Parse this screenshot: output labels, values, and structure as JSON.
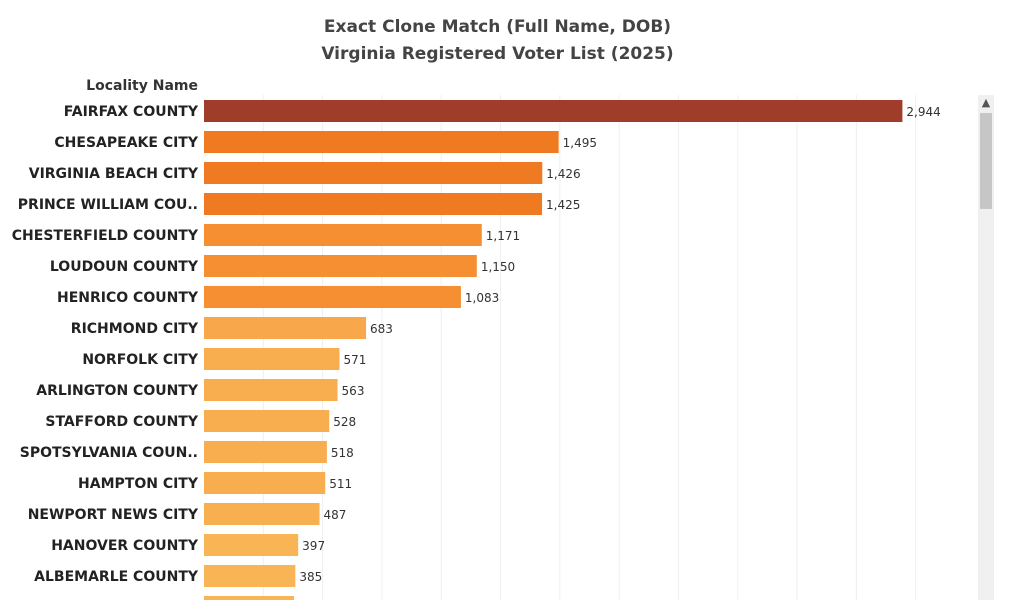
{
  "title": {
    "line1": "Exact Clone Match (Full Name, DOB)",
    "line2": "Virginia Registered Voter List (2025)"
  },
  "chart_data": {
    "type": "bar",
    "orientation": "horizontal",
    "ylabel": "Locality Name",
    "categories": [
      "FAIRFAX COUNTY",
      "CHESAPEAKE CITY",
      "VIRGINIA BEACH CITY",
      "PRINCE WILLIAM COU..",
      "CHESTERFIELD COUNTY",
      "LOUDOUN COUNTY",
      "HENRICO COUNTY",
      "RICHMOND CITY",
      "NORFOLK CITY",
      "ARLINGTON COUNTY",
      "STAFFORD COUNTY",
      "SPOTSYLVANIA COUN..",
      "HAMPTON CITY",
      "NEWPORT NEWS CITY",
      "HANOVER COUNTY",
      "ALBEMARLE COUNTY"
    ],
    "values": [
      2944,
      1495,
      1426,
      1425,
      1171,
      1150,
      1083,
      683,
      571,
      563,
      528,
      518,
      511,
      487,
      397,
      385
    ],
    "value_labels": [
      "2,944",
      "1,495",
      "1,426",
      "1,425",
      "1,171",
      "1,150",
      "1,083",
      "683",
      "571",
      "563",
      "528",
      "518",
      "511",
      "487",
      "397",
      "385"
    ],
    "colors": [
      "#a03c2a",
      "#f07a22",
      "#f07a22",
      "#f07a22",
      "#f58f32",
      "#f58f32",
      "#f58f32",
      "#f8a84a",
      "#f8ad4e",
      "#f8ad4e",
      "#f8ad4e",
      "#f8ad4e",
      "#f8ad4e",
      "#f8af50",
      "#f8b455",
      "#f8b455"
    ],
    "partial_next_bar_color": "#f8b455",
    "xlim": [
      0,
      3250
    ],
    "grid": true
  },
  "scrollbar": {
    "arrow_icon": "chevron-up-icon"
  }
}
